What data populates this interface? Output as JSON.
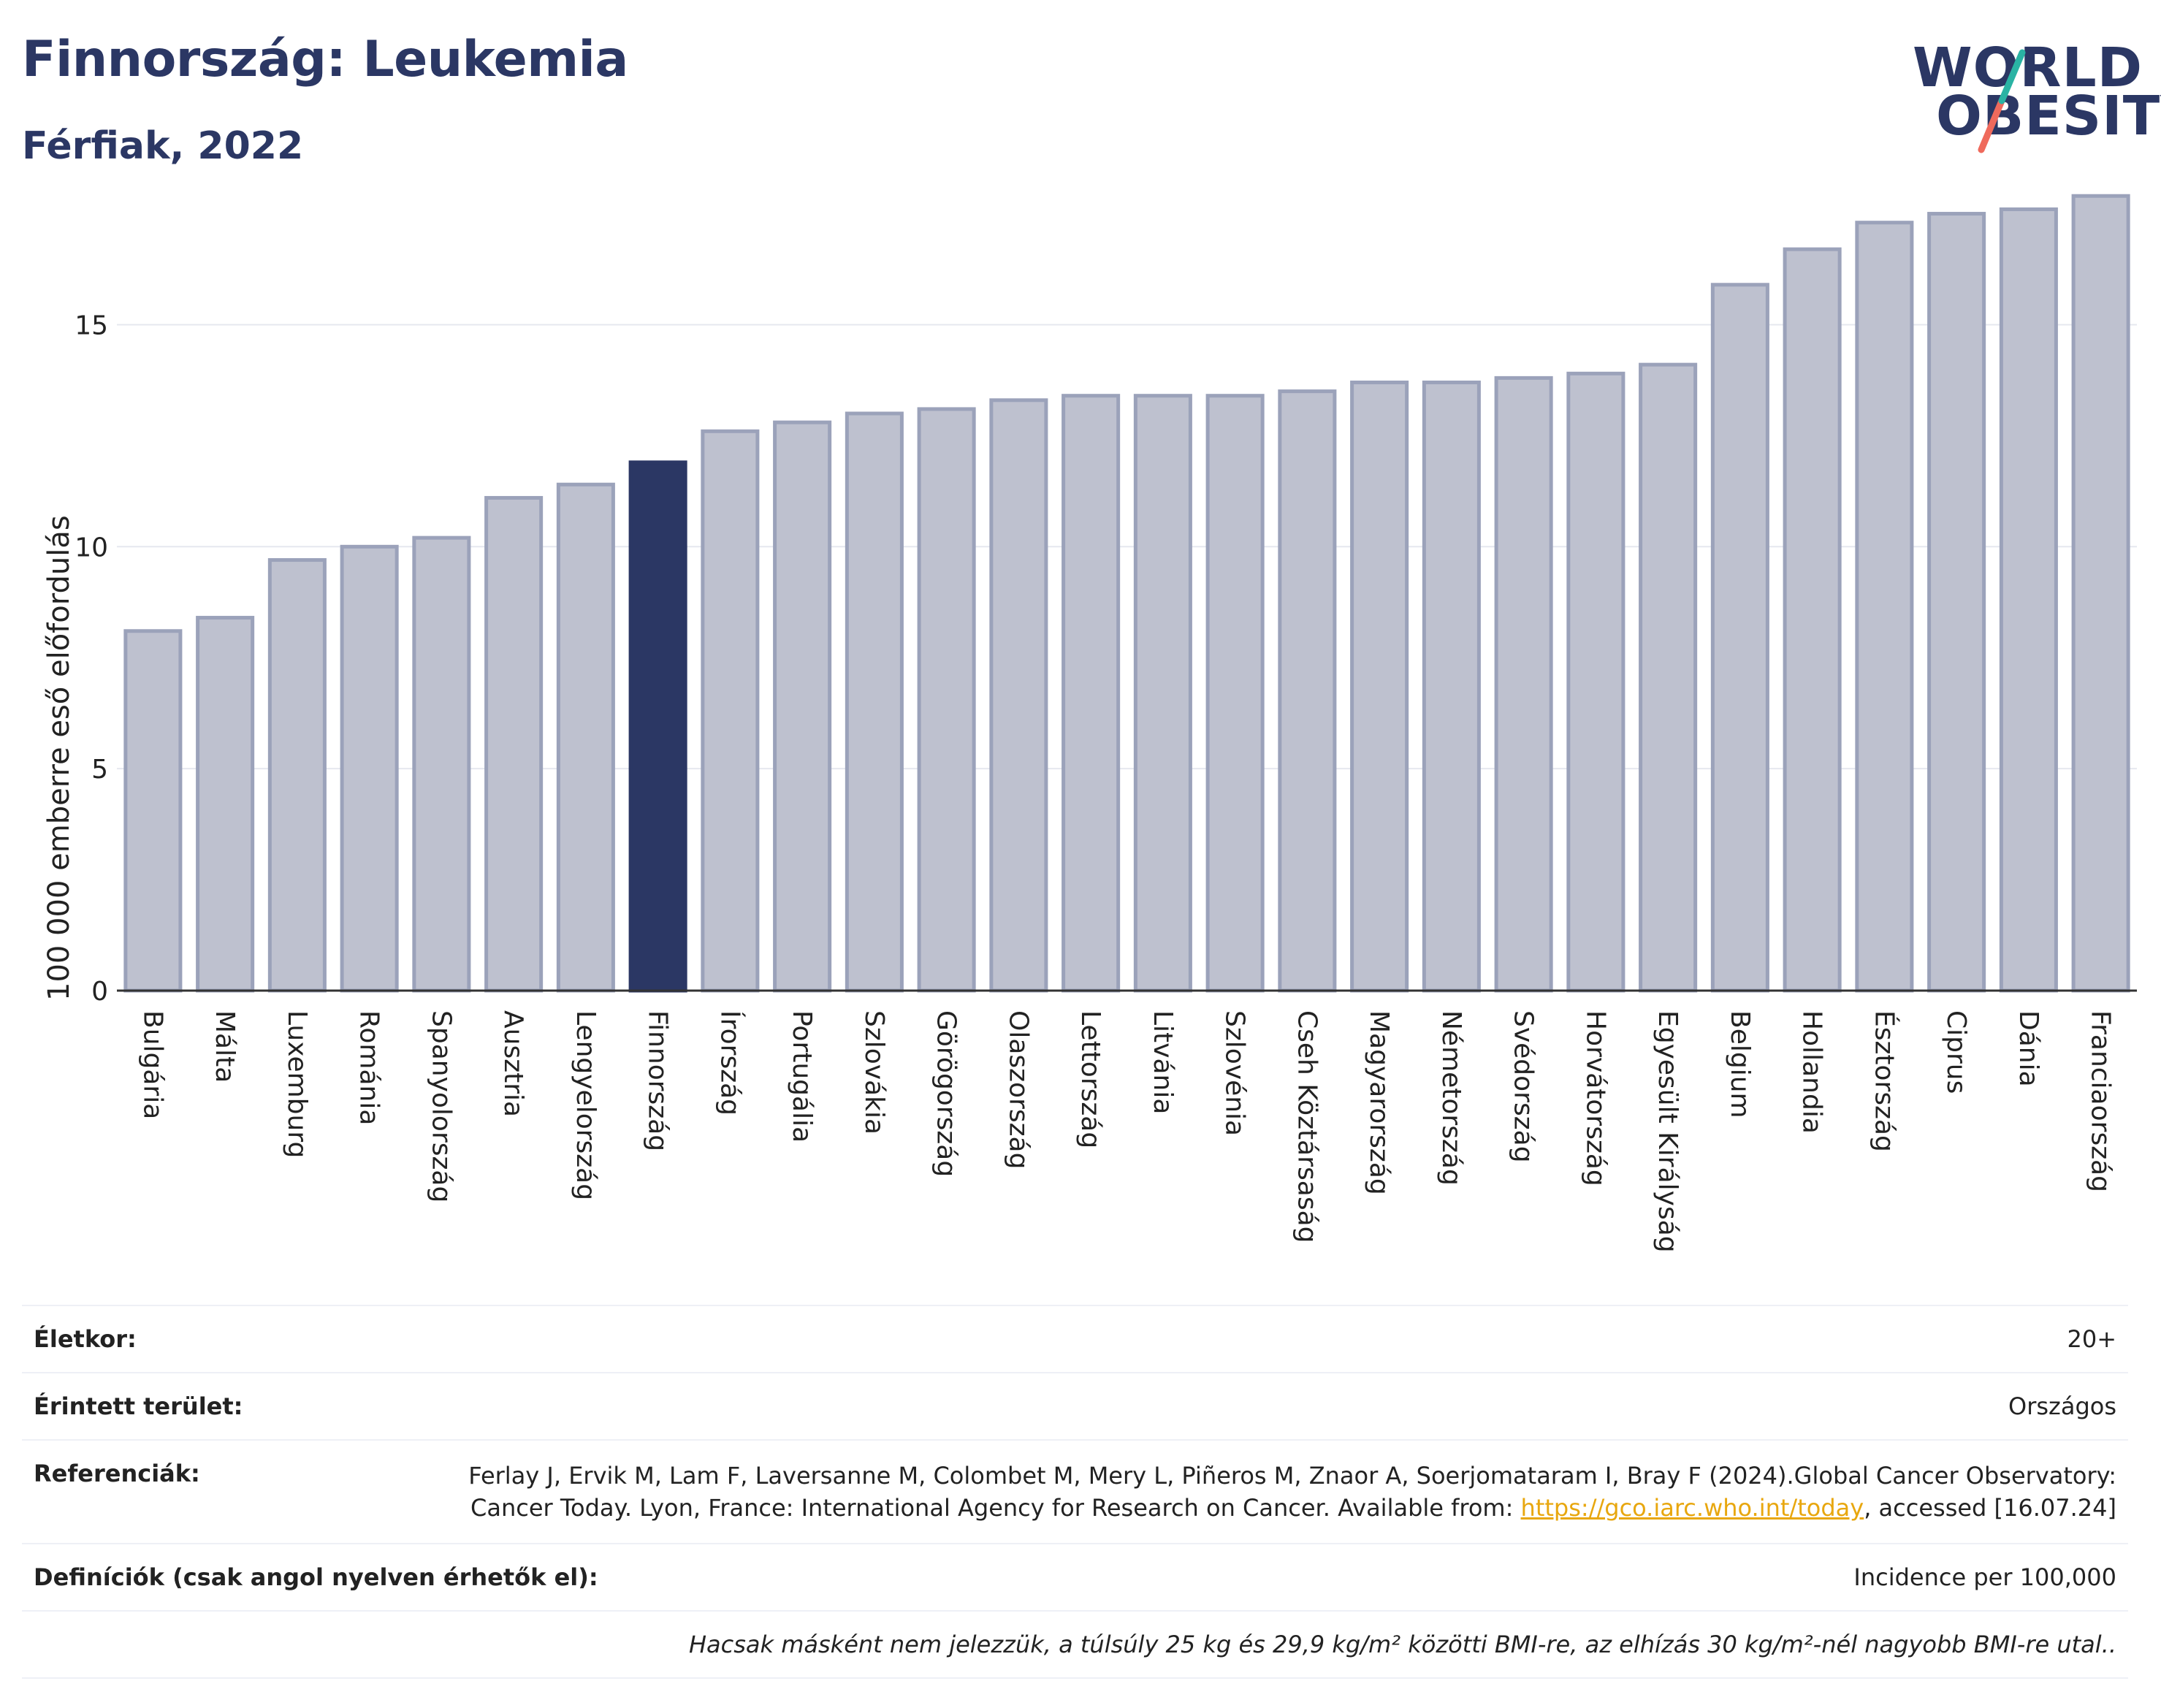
{
  "header": {
    "title": "Finnország: Leukemia",
    "subtitle": "Férfiak, 2022"
  },
  "logo": {
    "line1": "WORLD",
    "line2": "OBESITY"
  },
  "colors": {
    "highlight": "#2b3764",
    "bar": "#bec1cf",
    "bar_border": "#9ba2ba",
    "grid": "#e6e8ef",
    "logo_slash_top": "#2ab3a4",
    "logo_slash_bottom": "#ef6a5c"
  },
  "chart_data": {
    "type": "bar",
    "title": "Finnország: Leukemia",
    "subtitle": "Férfiak, 2022",
    "ylabel": "100 000 emberre eső előfordulás",
    "xlabel": "",
    "ylim": [
      0,
      18.2
    ],
    "yticks": [
      0,
      5,
      10,
      15
    ],
    "grid": true,
    "highlight_category": "Finnország",
    "categories": [
      "Bulgária",
      "Málta",
      "Luxemburg",
      "Románia",
      "Spanyolország",
      "Ausztria",
      "Lengyelország",
      "Finnország",
      "Írország",
      "Portugália",
      "Szlovákia",
      "Görögország",
      "Olaszország",
      "Lettország",
      "Litvánia",
      "Szlovénia",
      "Cseh Köztársaság",
      "Magyarország",
      "Németország",
      "Svédország",
      "Horvátország",
      "Egyesült Királyság",
      "Belgium",
      "Hollandia",
      "Észtország",
      "Ciprus",
      "Dánia",
      "Franciaország"
    ],
    "values": [
      8.1,
      8.4,
      9.7,
      10.0,
      10.2,
      11.1,
      11.4,
      11.9,
      12.6,
      12.8,
      13.0,
      13.1,
      13.3,
      13.4,
      13.4,
      13.4,
      13.5,
      13.7,
      13.7,
      13.8,
      13.9,
      14.1,
      15.9,
      16.7,
      17.3,
      17.5,
      17.6,
      17.9
    ]
  },
  "info": {
    "age_label": "Életkor:",
    "age_value": "20+",
    "area_label": "Érintett terület:",
    "area_value": "Országos",
    "ref_label": "Referenciák:",
    "ref_text_1": "Ferlay J, Ervik M, Lam F, Laversanne M, Colombet M, Mery L, Piñeros M, Znaor A, Soerjomataram I, Bray F (2024).Global Cancer Observatory: Cancer Today. Lyon, France: International Agency for Research on Cancer. Available from: ",
    "ref_link": "https://gco.iarc.who.int/today",
    "ref_text_2": ", accessed [16.07.24]",
    "def_label": "Definíciók (csak angol nyelven érhetők el):",
    "def_value": "Incidence per 100,000",
    "note": "Hacsak másként nem jelezzük, a túlsúly 25 kg és 29,9 kg/m² közötti BMI-re, az elhízás 30 kg/m²-nél nagyobb BMI-re utal.."
  }
}
